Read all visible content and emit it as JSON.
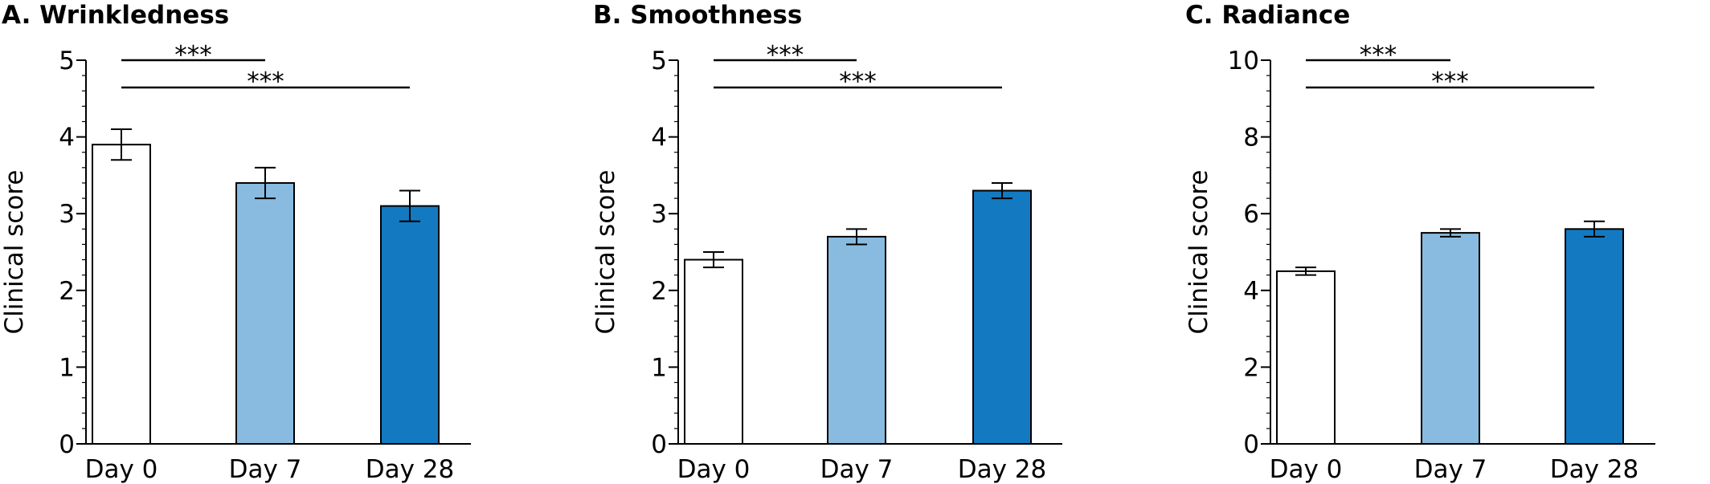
{
  "chart_data": [
    {
      "type": "bar",
      "title": "A. Wrinkledness",
      "ylabel": "Clinical score",
      "ylim": [
        0,
        5
      ],
      "yticks": [
        0,
        1,
        2,
        3,
        4,
        5
      ],
      "categories": [
        "Day 0",
        "Day 7",
        "Day 28"
      ],
      "values": [
        3.9,
        3.4,
        3.1
      ],
      "errors": [
        0.2,
        0.2,
        0.2
      ],
      "bar_colors": [
        "#ffffff",
        "#88bbdf",
        "#137ac2"
      ],
      "significance": [
        {
          "from": 0,
          "to": 1,
          "label": "***"
        },
        {
          "from": 0,
          "to": 2,
          "label": "***"
        }
      ]
    },
    {
      "type": "bar",
      "title": "B. Smoothness",
      "ylabel": "Clinical score",
      "ylim": [
        0,
        5
      ],
      "yticks": [
        0,
        1,
        2,
        3,
        4,
        5
      ],
      "categories": [
        "Day 0",
        "Day 7",
        "Day 28"
      ],
      "values": [
        2.4,
        2.7,
        3.3
      ],
      "errors": [
        0.1,
        0.1,
        0.1
      ],
      "bar_colors": [
        "#ffffff",
        "#88bbdf",
        "#137ac2"
      ],
      "significance": [
        {
          "from": 0,
          "to": 1,
          "label": "***"
        },
        {
          "from": 0,
          "to": 2,
          "label": "***"
        }
      ]
    },
    {
      "type": "bar",
      "title": "C. Radiance",
      "ylabel": "Clinical score",
      "ylim": [
        0,
        10
      ],
      "yticks": [
        0,
        2,
        4,
        6,
        8,
        10
      ],
      "categories": [
        "Day 0",
        "Day 7",
        "Day 28"
      ],
      "values": [
        4.5,
        5.5,
        5.6
      ],
      "errors": [
        0.1,
        0.1,
        0.2
      ],
      "bar_colors": [
        "#ffffff",
        "#88bbdf",
        "#137ac2"
      ],
      "significance": [
        {
          "from": 0,
          "to": 1,
          "label": "***"
        },
        {
          "from": 0,
          "to": 2,
          "label": "***"
        }
      ]
    }
  ]
}
